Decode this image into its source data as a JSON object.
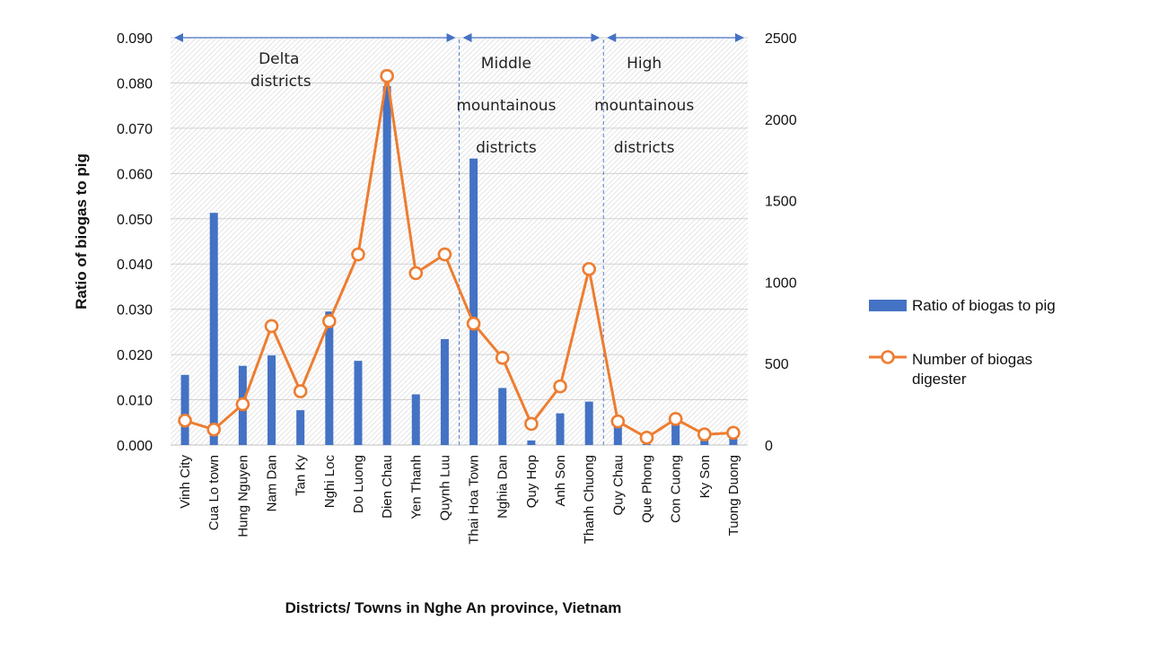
{
  "chart_data": {
    "type": "bar+line",
    "categories": [
      "Vinh City",
      "Cua Lo town",
      "Hung Nguyen",
      "Nam Dan",
      "Tan Ky",
      "Nghi Loc",
      "Do Luong",
      "Dien Chau",
      "Yen Thanh",
      "Quynh Luu",
      "Thai Hoa Town",
      "Nghia Dan",
      "Quy Hop",
      "Anh Son",
      "Thanh Chuong",
      "Quy Chau",
      "Que Phong",
      "Con Cuong",
      "Ky Son",
      "Tuong Duong"
    ],
    "series": [
      {
        "name": "Ratio of biogas to pig",
        "type": "bar",
        "axis": "left",
        "color": "#4472c4",
        "values": [
          0.0155,
          0.0513,
          0.0175,
          0.0198,
          0.0077,
          0.0295,
          0.0186,
          0.0793,
          0.0112,
          0.0234,
          0.0633,
          0.0126,
          0.001,
          0.007,
          0.0096,
          0.004,
          0.0002,
          0.005,
          0.001,
          0.002
        ]
      },
      {
        "name": "Number of biogas digester",
        "type": "line",
        "axis": "right",
        "color": "#ed7d31",
        "values": [
          150,
          95,
          250,
          730,
          330,
          760,
          1170,
          2265,
          1055,
          1170,
          745,
          535,
          130,
          360,
          1080,
          145,
          45,
          160,
          65,
          75
        ]
      }
    ],
    "xlabel": "Districts/ Towns in Nghe An province, Vietnam",
    "ylabel": "Ratio of biogas to pig",
    "ylim": [
      0,
      0.09
    ],
    "y_ticks": [
      "0.000",
      "0.010",
      "0.020",
      "0.030",
      "0.040",
      "0.050",
      "0.060",
      "0.070",
      "0.080",
      "0.090"
    ],
    "y2lim": [
      0,
      2500
    ],
    "y2_ticks": [
      "0",
      "500",
      "1000",
      "1500",
      "2000",
      "2500"
    ],
    "grid": true,
    "legend_position": "right",
    "regions": [
      {
        "lines": [
          "Delta",
          "districts"
        ],
        "from": 0,
        "to": 9
      },
      {
        "lines": [
          "Middle",
          "mountainous",
          "districts"
        ],
        "from": 10,
        "to": 14
      },
      {
        "lines": [
          "High",
          "mountainous",
          "districts"
        ],
        "from": 15,
        "to": 19
      }
    ]
  }
}
